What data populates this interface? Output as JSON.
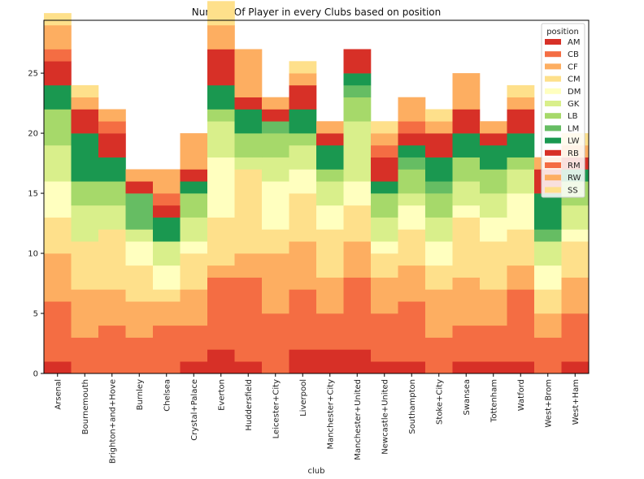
{
  "chart_data": {
    "type": "bar",
    "stacked": true,
    "title": "Number Of Player in every Clubs based on position",
    "xlabel": "club",
    "ylabel": "",
    "ylim": [
      0,
      29.4
    ],
    "yticks": [
      0,
      5,
      10,
      15,
      20,
      25
    ],
    "grid": false,
    "legend": {
      "title": "position",
      "placement": "top-right"
    },
    "categories": [
      "Arsenal",
      "Bournemouth",
      "Brighton+and+Hove",
      "Burnley",
      "Chelsea",
      "Crystal+Palace",
      "Everton",
      "Huddersfield",
      "Leicester+City",
      "Liverpool",
      "Manchester+City",
      "Manchester+United",
      "Newcastle+United",
      "Southampton",
      "Stoke+City",
      "Swansea",
      "Tottenham",
      "Watford",
      "West+Brom",
      "West+Ham"
    ],
    "series": [
      {
        "name": "AM",
        "color": "#d73027",
        "values": [
          1,
          0,
          0,
          0,
          0,
          1,
          2,
          1,
          0,
          2,
          2,
          2,
          1,
          1,
          0,
          1,
          1,
          1,
          0,
          1
        ]
      },
      {
        "name": "CB",
        "color": "#f46d43",
        "values": [
          5,
          3,
          4,
          3,
          4,
          3,
          6,
          7,
          5,
          5,
          3,
          6,
          4,
          5,
          3,
          3,
          3,
          6,
          3,
          4
        ]
      },
      {
        "name": "CF",
        "color": "#fdae61",
        "values": [
          4,
          4,
          3,
          3,
          2,
          3,
          1,
          2,
          5,
          4,
          3,
          3,
          3,
          3,
          4,
          4,
          3,
          2,
          2,
          3
        ]
      },
      {
        "name": "CM",
        "color": "#fee08b",
        "values": [
          3,
          4,
          5,
          3,
          1,
          3,
          4,
          7,
          2,
          4,
          4,
          3,
          2,
          3,
          2,
          5,
          4,
          3,
          2,
          3
        ]
      },
      {
        "name": "DM",
        "color": "#ffffbf",
        "values": [
          3,
          0,
          0,
          2,
          2,
          1,
          5,
          0,
          4,
          2,
          2,
          2,
          1,
          2,
          2,
          1,
          2,
          3,
          2,
          1
        ]
      },
      {
        "name": "GK",
        "color": "#d9ef8b",
        "values": [
          3,
          3,
          2,
          1,
          2,
          2,
          3,
          1,
          2,
          2,
          2,
          5,
          2,
          1,
          2,
          2,
          2,
          2,
          2,
          2
        ]
      },
      {
        "name": "LB",
        "color": "#a6d96a",
        "values": [
          3,
          2,
          2,
          0,
          0,
          2,
          1,
          2,
          2,
          1,
          1,
          2,
          2,
          2,
          2,
          2,
          2,
          1,
          0,
          2
        ]
      },
      {
        "name": "LM",
        "color": "#66bd63",
        "values": [
          0,
          0,
          0,
          3,
          0,
          0,
          0,
          0,
          1,
          0,
          0,
          1,
          0,
          1,
          1,
          0,
          0,
          0,
          1,
          0
        ]
      },
      {
        "name": "LW",
        "color": "#1a9850",
        "values": [
          2,
          4,
          2,
          0,
          2,
          1,
          2,
          2,
          0,
          2,
          2,
          1,
          1,
          1,
          2,
          2,
          2,
          2,
          3,
          1
        ]
      },
      {
        "name": "RB",
        "color": "#d73027",
        "values": [
          2,
          2,
          2,
          1,
          1,
          1,
          3,
          1,
          1,
          2,
          1,
          2,
          2,
          1,
          2,
          2,
          1,
          2,
          2,
          1
        ]
      },
      {
        "name": "RM",
        "color": "#f46d43",
        "values": [
          1,
          0,
          1,
          0,
          1,
          0,
          0,
          0,
          0,
          0,
          0,
          0,
          1,
          1,
          0,
          0,
          0,
          0,
          0,
          0
        ]
      },
      {
        "name": "RW",
        "color": "#fdae61",
        "values": [
          2,
          1,
          1,
          1,
          2,
          3,
          2,
          4,
          1,
          1,
          1,
          0,
          1,
          2,
          1,
          3,
          1,
          1,
          1,
          1
        ]
      },
      {
        "name": "SS",
        "color": "#fee08b",
        "values": [
          1,
          1,
          0,
          0,
          0,
          0,
          2,
          0,
          0,
          1,
          0,
          0,
          1,
          0,
          1,
          0,
          0,
          1,
          0,
          1
        ]
      }
    ]
  }
}
